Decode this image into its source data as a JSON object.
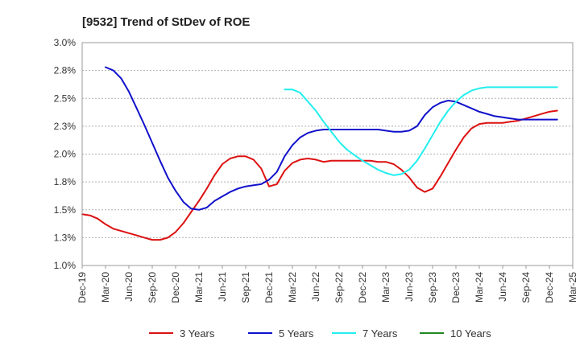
{
  "chart_data": {
    "type": "line",
    "title": "[9532]  Trend of StDev of ROE",
    "xlabel": "",
    "ylabel": "",
    "ylim": [
      1.0,
      3.0
    ],
    "y_ticks": [
      "1.0%",
      "1.3%",
      "1.5%",
      "1.8%",
      "2.0%",
      "2.3%",
      "2.5%",
      "2.8%",
      "3.0%"
    ],
    "x_ticks": [
      "Dec-19",
      "Mar-20",
      "Jun-20",
      "Sep-20",
      "Dec-20",
      "Mar-21",
      "Jun-21",
      "Sep-21",
      "Dec-21",
      "Mar-22",
      "Jun-22",
      "Sep-22",
      "Dec-22",
      "Mar-23",
      "Jun-23",
      "Sep-23",
      "Dec-23",
      "Mar-24",
      "Jun-24",
      "Sep-24",
      "Dec-24",
      "Mar-25"
    ],
    "grid": "horizontal dashed",
    "legend_position": "bottom",
    "series": [
      {
        "name": "3 Years",
        "color": "#dd1111",
        "values": [
          1.46,
          1.45,
          1.42,
          1.37,
          1.33,
          1.31,
          1.29,
          1.27,
          1.25,
          1.23,
          1.23,
          1.25,
          1.3,
          1.38,
          1.48,
          1.58,
          1.69,
          1.81,
          1.91,
          1.96,
          1.98,
          1.98,
          1.95,
          1.87,
          1.71,
          1.73,
          1.85,
          1.92,
          1.95,
          1.96,
          1.95,
          1.93,
          1.94,
          1.94,
          1.94,
          1.94,
          1.94,
          1.94,
          1.93,
          1.93,
          1.91,
          1.86,
          1.79,
          1.7,
          1.66,
          1.69,
          1.8,
          1.92,
          2.04,
          2.15,
          2.23,
          2.27,
          2.28,
          2.28,
          2.28,
          2.29,
          2.3,
          2.32,
          2.34,
          2.36,
          2.38,
          2.39
        ]
      },
      {
        "name": "5 Years",
        "color": "#1111cc",
        "values": [
          null,
          null,
          null,
          2.78,
          2.75,
          2.68,
          2.56,
          2.41,
          2.26,
          2.1,
          1.94,
          1.79,
          1.67,
          1.57,
          1.51,
          1.5,
          1.52,
          1.58,
          1.62,
          1.66,
          1.69,
          1.71,
          1.72,
          1.73,
          1.77,
          1.84,
          1.98,
          2.08,
          2.15,
          2.19,
          2.21,
          2.22,
          2.22,
          2.22,
          2.22,
          2.22,
          2.22,
          2.22,
          2.22,
          2.21,
          2.2,
          2.2,
          2.21,
          2.25,
          2.35,
          2.42,
          2.46,
          2.48,
          2.47,
          2.44,
          2.41,
          2.38,
          2.36,
          2.34,
          2.33,
          2.32,
          2.31,
          2.31,
          2.31,
          2.31,
          2.31,
          2.31
        ]
      },
      {
        "name": "7 Years",
        "color": "#22eeee",
        "values": [
          null,
          null,
          null,
          null,
          null,
          null,
          null,
          null,
          null,
          null,
          null,
          null,
          null,
          null,
          null,
          null,
          null,
          null,
          null,
          null,
          null,
          null,
          null,
          null,
          null,
          null,
          2.58,
          2.58,
          2.55,
          2.47,
          2.39,
          2.29,
          2.2,
          2.11,
          2.04,
          1.99,
          1.94,
          1.9,
          1.86,
          1.83,
          1.81,
          1.82,
          1.86,
          1.94,
          2.05,
          2.17,
          2.29,
          2.39,
          2.47,
          2.53,
          2.57,
          2.59,
          2.6,
          2.6,
          2.6,
          2.6,
          2.6,
          2.6,
          2.6,
          2.6,
          2.6,
          2.6
        ]
      },
      {
        "name": "10 Years",
        "color": "#228822",
        "values": []
      }
    ]
  }
}
